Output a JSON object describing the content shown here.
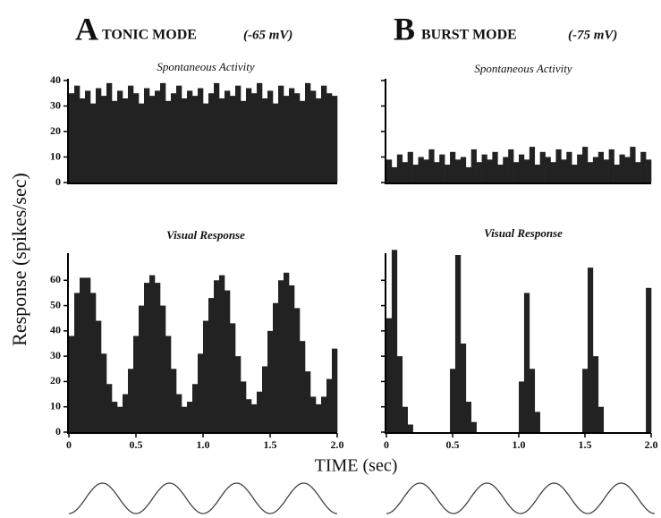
{
  "panels": [
    {
      "letter": "A",
      "mode": "TONIC MODE",
      "voltage": "(-65 mV)"
    },
    {
      "letter": "B",
      "mode": "BURST MODE",
      "voltage": "(-75 mV)"
    }
  ],
  "ylabel": "Response (spikes/sec)",
  "xlabel": "TIME (sec)",
  "chart_data": [
    {
      "type": "histogram",
      "title": "Spontaneous Activity",
      "color": "#222222",
      "bins": [
        0,
        0.04,
        0.08,
        0.12,
        0.16,
        0.2,
        0.24,
        0.28,
        0.32,
        0.36,
        0.4,
        0.44,
        0.48,
        0.52,
        0.56,
        0.6,
        0.64,
        0.68,
        0.72,
        0.76,
        0.8,
        0.84,
        0.88,
        0.92,
        0.96,
        1,
        1.04,
        1.08,
        1.12,
        1.16,
        1.2,
        1.24,
        1.28,
        1.32,
        1.36,
        1.4,
        1.44,
        1.48,
        1.52,
        1.56,
        1.6,
        1.64,
        1.68,
        1.72,
        1.76,
        1.8,
        1.84,
        1.88,
        1.92,
        1.96,
        2
      ],
      "values": [
        35,
        38,
        33,
        36,
        31,
        37,
        34,
        39,
        32,
        36,
        33,
        38,
        35,
        31,
        37,
        34,
        36,
        39,
        32,
        35,
        38,
        33,
        36,
        34,
        37,
        31,
        35,
        39,
        33,
        36,
        34,
        38,
        32,
        37,
        35,
        39,
        33,
        36,
        31,
        38,
        34,
        37,
        35,
        32,
        39,
        36,
        33,
        38,
        35,
        34
      ],
      "xlim": [
        0,
        2
      ],
      "ylim": [
        0,
        40
      ],
      "yticks": [
        0,
        10,
        20,
        30,
        40
      ],
      "ytick_labels": true
    },
    {
      "type": "histogram",
      "title": "Visual Response",
      "color": "#222222",
      "bins": [
        0,
        0.04,
        0.08,
        0.12,
        0.16,
        0.2,
        0.24,
        0.28,
        0.32,
        0.36,
        0.4,
        0.44,
        0.48,
        0.52,
        0.56,
        0.6,
        0.64,
        0.68,
        0.72,
        0.76,
        0.8,
        0.84,
        0.88,
        0.92,
        0.96,
        1,
        1.04,
        1.08,
        1.12,
        1.16,
        1.2,
        1.24,
        1.28,
        1.32,
        1.36,
        1.4,
        1.44,
        1.48,
        1.52,
        1.56,
        1.6,
        1.64,
        1.68,
        1.72,
        1.76,
        1.8,
        1.84,
        1.88,
        1.92,
        1.96,
        2
      ],
      "values": [
        38,
        55,
        61,
        61,
        55,
        44,
        31,
        19,
        12,
        10,
        15,
        25,
        38,
        50,
        59,
        62,
        59,
        50,
        38,
        25,
        15,
        10,
        12,
        19,
        31,
        44,
        53,
        60,
        62,
        56,
        43,
        30,
        20,
        13,
        11,
        16,
        26,
        40,
        51,
        60,
        63,
        58,
        49,
        36,
        24,
        14,
        11,
        14,
        21,
        33
      ],
      "xlim": [
        0,
        2
      ],
      "ylim": [
        0,
        70
      ],
      "yticks": [
        0,
        10,
        20,
        30,
        40,
        50,
        60
      ],
      "ytick_labels": true,
      "xticks": [
        0,
        0.5,
        {
          "value": 1,
          "label": "1.0"
        },
        1.5,
        {
          "value": 2,
          "label": "2.0"
        }
      ]
    },
    {
      "type": "histogram",
      "title": "Spontaneous Activity",
      "color": "#222222",
      "bins": [
        0,
        0.04,
        0.08,
        0.12,
        0.16,
        0.2,
        0.24,
        0.28,
        0.32,
        0.36,
        0.4,
        0.44,
        0.48,
        0.52,
        0.56,
        0.6,
        0.64,
        0.68,
        0.72,
        0.76,
        0.8,
        0.84,
        0.88,
        0.92,
        0.96,
        1,
        1.04,
        1.08,
        1.12,
        1.16,
        1.2,
        1.24,
        1.28,
        1.32,
        1.36,
        1.4,
        1.44,
        1.48,
        1.52,
        1.56,
        1.6,
        1.64,
        1.68,
        1.72,
        1.76,
        1.8,
        1.84,
        1.88,
        1.92,
        1.96,
        2
      ],
      "values": [
        9,
        6,
        11,
        8,
        12,
        7,
        10,
        9,
        13,
        8,
        11,
        7,
        12,
        9,
        10,
        6,
        13,
        8,
        11,
        9,
        12,
        7,
        10,
        13,
        8,
        11,
        9,
        14,
        7,
        12,
        10,
        8,
        13,
        9,
        12,
        7,
        11,
        14,
        8,
        10,
        12,
        9,
        13,
        7,
        11,
        10,
        14,
        8,
        12,
        9
      ],
      "xlim": [
        0,
        2
      ],
      "ylim": [
        0,
        40
      ],
      "yticks": [
        0,
        10,
        20,
        30,
        40
      ],
      "ytick_labels": false
    },
    {
      "type": "histogram",
      "title": "Visual Response",
      "color": "#222222",
      "bins": [
        0,
        0.04,
        0.08,
        0.12,
        0.16,
        0.2,
        0.24,
        0.28,
        0.32,
        0.36,
        0.4,
        0.44,
        0.48,
        0.52,
        0.56,
        0.6,
        0.64,
        0.68,
        0.72,
        0.76,
        0.8,
        0.84,
        0.88,
        0.92,
        0.96,
        1,
        1.04,
        1.08,
        1.12,
        1.16,
        1.2,
        1.24,
        1.28,
        1.32,
        1.36,
        1.4,
        1.44,
        1.48,
        1.52,
        1.56,
        1.6,
        1.64,
        1.68,
        1.72,
        1.76,
        1.8,
        1.84,
        1.88,
        1.92,
        1.96,
        2
      ],
      "values": [
        45,
        72,
        30,
        10,
        3,
        0,
        0,
        0,
        0,
        0,
        0,
        0,
        25,
        70,
        35,
        12,
        4,
        0,
        0,
        0,
        0,
        0,
        0,
        0,
        0,
        20,
        55,
        25,
        8,
        0,
        0,
        0,
        0,
        0,
        0,
        0,
        0,
        25,
        65,
        30,
        10,
        0,
        0,
        0,
        0,
        0,
        0,
        0,
        0,
        57
      ],
      "xlim": [
        0,
        2
      ],
      "ylim": [
        0,
        70
      ],
      "yticks": [
        0,
        10,
        20,
        30,
        40,
        50,
        60
      ],
      "ytick_labels": false,
      "xticks": [
        0,
        0.5,
        {
          "value": 1,
          "label": "1.0"
        },
        1.5,
        {
          "value": 2,
          "label": "2.0"
        }
      ]
    }
  ]
}
